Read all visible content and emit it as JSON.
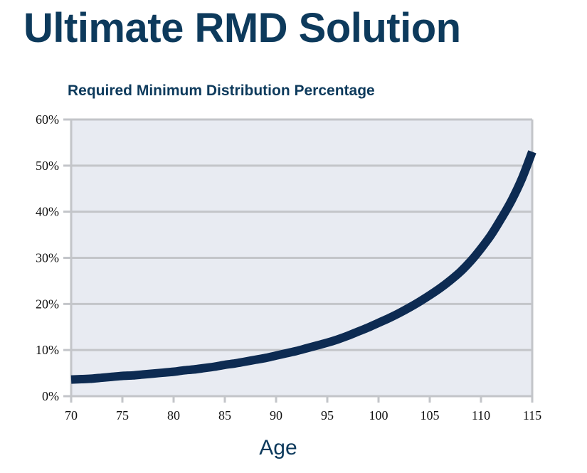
{
  "page_title": "Ultimate RMD Solution",
  "chart_data": {
    "type": "line",
    "title": "Required Minimum Distribution Percentage",
    "xlabel": "Age",
    "ylabel": "",
    "xlim": [
      70,
      115
    ],
    "ylim": [
      0,
      60
    ],
    "x_ticks": [
      "70",
      "75",
      "80",
      "85",
      "90",
      "95",
      "100",
      "105",
      "110",
      "115"
    ],
    "y_ticks": [
      "0%",
      "10%",
      "20%",
      "30%",
      "40%",
      "50%",
      "60%"
    ],
    "grid": "horizontal",
    "legend": "none",
    "colors": {
      "line": "#0d2b52",
      "plot_bg": "#e8ebf2",
      "grid": "#c3c5c9",
      "title": "#0d3a5c"
    },
    "series": [
      {
        "x": [
          70,
          71,
          72,
          73,
          74,
          75,
          76,
          77,
          78,
          79,
          80,
          81,
          82,
          83,
          84,
          85,
          86,
          87,
          88,
          89,
          90,
          91,
          92,
          93,
          94,
          95,
          96,
          97,
          98,
          99,
          100,
          101,
          102,
          103,
          104,
          105,
          106,
          107,
          108,
          109,
          110,
          111,
          112,
          113,
          114,
          115
        ],
        "y": [
          3.6,
          3.7,
          3.8,
          4.0,
          4.2,
          4.4,
          4.5,
          4.7,
          4.9,
          5.1,
          5.3,
          5.6,
          5.8,
          6.1,
          6.4,
          6.8,
          7.1,
          7.5,
          7.9,
          8.3,
          8.8,
          9.3,
          9.8,
          10.4,
          11.0,
          11.6,
          12.3,
          13.1,
          14.0,
          14.9,
          15.9,
          16.9,
          18.0,
          19.2,
          20.5,
          21.9,
          23.4,
          25.1,
          27.0,
          29.3,
          32.0,
          35.0,
          38.6,
          42.5,
          47.2,
          53.0
        ]
      }
    ]
  }
}
